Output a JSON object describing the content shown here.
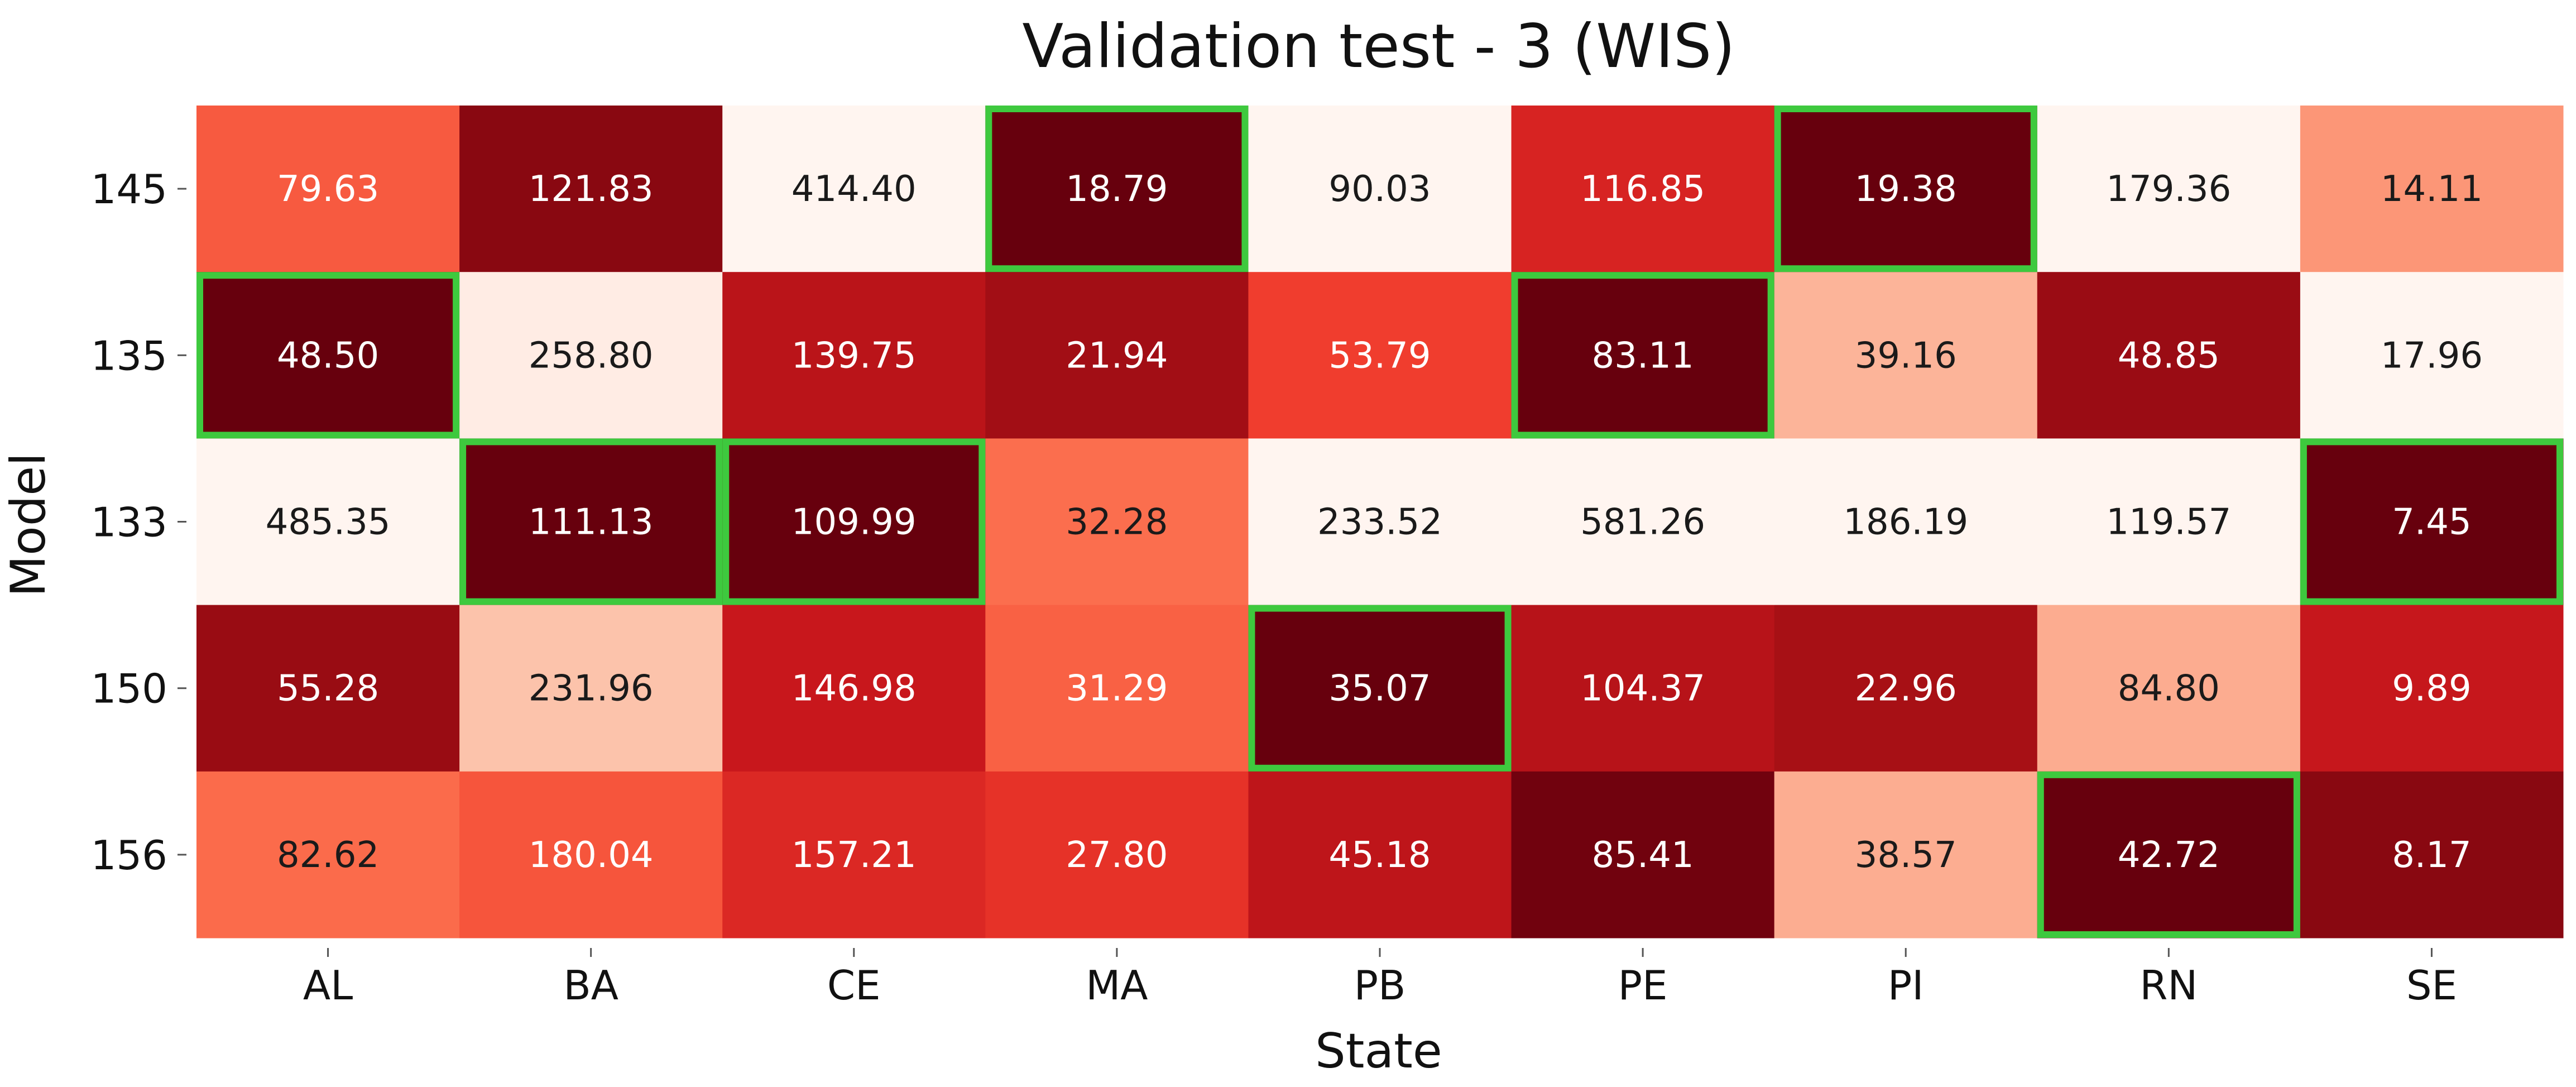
{
  "chart_data": {
    "type": "heatmap",
    "title": "Validation test - 3 (WIS)",
    "xlabel": "State",
    "ylabel": "Model",
    "x_categories": [
      "AL",
      "BA",
      "CE",
      "MA",
      "PB",
      "PE",
      "PI",
      "RN",
      "SE"
    ],
    "y_categories": [
      "145",
      "135",
      "133",
      "150",
      "156"
    ],
    "values": [
      [
        79.63,
        121.83,
        414.4,
        18.79,
        90.03,
        116.85,
        19.38,
        179.36,
        14.11
      ],
      [
        48.5,
        258.8,
        139.75,
        21.94,
        53.79,
        83.11,
        39.16,
        48.85,
        17.96
      ],
      [
        485.35,
        111.13,
        109.99,
        32.28,
        233.52,
        581.26,
        186.19,
        119.57,
        7.45
      ],
      [
        55.28,
        231.96,
        146.98,
        31.29,
        35.07,
        104.37,
        22.96,
        84.8,
        9.89
      ],
      [
        82.62,
        180.04,
        157.21,
        27.8,
        45.18,
        85.41,
        38.57,
        42.72,
        8.17
      ]
    ],
    "value_format": "2 decimals",
    "colormap": "Reds_r (per column: lowest value darkest, highest value lightest)",
    "highlight": "minimum value per column outlined",
    "highlight_color": "#3ec93e",
    "grid": false,
    "legend": "none"
  }
}
